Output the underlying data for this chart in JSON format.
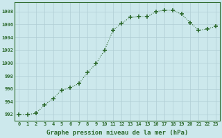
{
  "x": [
    0,
    1,
    2,
    3,
    4,
    5,
    6,
    7,
    8,
    9,
    10,
    11,
    12,
    13,
    14,
    15,
    16,
    17,
    18,
    19,
    20,
    21,
    22,
    23
  ],
  "y": [
    992.0,
    992.0,
    992.2,
    993.5,
    994.5,
    995.8,
    996.2,
    996.8,
    998.5,
    999.9,
    1002.0,
    1005.1,
    1006.2,
    1007.1,
    1007.2,
    1007.2,
    1008.0,
    1008.2,
    1008.2,
    1007.6,
    1006.3,
    1005.1,
    1005.3,
    1005.7
  ],
  "line_color": "#2d6a2d",
  "marker": "+",
  "markersize": 4,
  "markeredgewidth": 1.2,
  "linewidth": 0.8,
  "bg_color": "#cce8ec",
  "grid_color": "#b0cdd4",
  "xlabel": "Graphe pression niveau de la mer (hPa)",
  "xlabel_fontsize": 6.5,
  "ytick_labels": [
    "992",
    "994",
    "996",
    "998",
    "1000",
    "1002",
    "1004",
    "1006",
    "1008"
  ],
  "ytick_values": [
    992,
    994,
    996,
    998,
    1000,
    1002,
    1004,
    1006,
    1008
  ],
  "ylim": [
    991.0,
    1009.5
  ],
  "xlim": [
    -0.5,
    23.5
  ],
  "xtick_fontsize": 5.0,
  "ytick_fontsize": 5.0
}
